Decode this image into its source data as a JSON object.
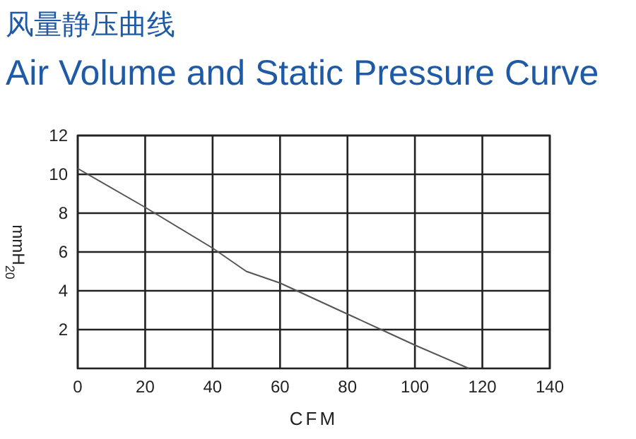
{
  "chart_data": {
    "type": "line",
    "title": "风量静压曲线",
    "subtitle": "Air Volume and Static Pressure Curve",
    "xlabel": "CFM",
    "ylabel": "mmH$_{20}$",
    "x": [
      0,
      20,
      40,
      50,
      60,
      80,
      90,
      100,
      116
    ],
    "series": [
      {
        "color": "#555555",
        "values": [
          10.3,
          8.3,
          6.2,
          5.0,
          4.4,
          2.8,
          2.0,
          1.2,
          0
        ]
      }
    ],
    "xlim": [
      0,
      140
    ],
    "xticks": [
      0,
      20,
      40,
      60,
      80,
      100,
      120,
      140
    ],
    "ylim": [
      0,
      12
    ],
    "yticks": [
      2,
      4,
      6,
      8,
      10,
      12
    ],
    "grid": true,
    "marker": "none",
    "line_style": "solid"
  }
}
